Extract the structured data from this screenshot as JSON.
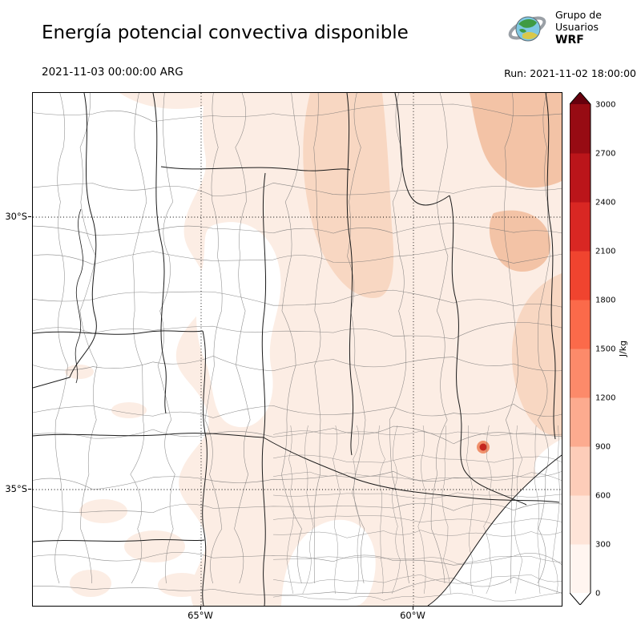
{
  "header": {
    "title": "Energía potencial convectiva disponible",
    "valid_time": "2021-11-03 00:00:00 ARG",
    "run_time": "Run: 2021-11-02 18:00:00",
    "logo": {
      "line1": "Grupo de",
      "line2": "Usuarios",
      "line3": "WRF"
    }
  },
  "axes": {
    "y_ticks": [
      "30°S",
      "35°S"
    ],
    "x_ticks": [
      "65°W",
      "60°W"
    ]
  },
  "colorbar": {
    "unit": "J/kg",
    "min": 0,
    "max": 3000,
    "ticks": [
      "0",
      "300",
      "600",
      "900",
      "1200",
      "1500",
      "1800",
      "2100",
      "2400",
      "2700",
      "3000"
    ],
    "segment_colors": [
      "#fff5f0",
      "#fee4d8",
      "#fdcdb9",
      "#fcab8f",
      "#fc8a6a",
      "#fb6a4a",
      "#f0442f",
      "#d92723",
      "#bb151a",
      "#970b13"
    ],
    "under_color": "#ffffff",
    "over_color": "#67000d"
  },
  "map": {
    "fill_levels": {
      "light": "#fcede4",
      "medium": "#f8d7c2",
      "strong": "#f3c3a6",
      "spot": "#c5261f",
      "spot_halo": "#f0916c"
    }
  }
}
